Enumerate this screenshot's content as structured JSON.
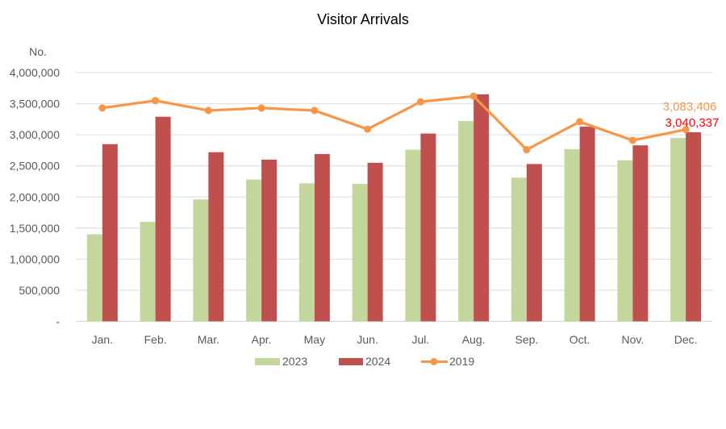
{
  "chart_data": {
    "type": "bar",
    "title": "Visitor Arrivals",
    "ylabel": "No.",
    "xlabel": "",
    "ylim": [
      0,
      4000000
    ],
    "yticks": [
      0,
      500000,
      1000000,
      1500000,
      2000000,
      2500000,
      3000000,
      3500000,
      4000000
    ],
    "ytick_labels": [
      "-",
      "500,000",
      "1,000,000",
      "1,500,000",
      "2,000,000",
      "2,500,000",
      "3,000,000",
      "3,500,000",
      "4,000,000"
    ],
    "grid": true,
    "legend_position": "bottom",
    "categories": [
      "Jan.",
      "Feb.",
      "Mar.",
      "Apr.",
      "May",
      "Jun.",
      "Jul.",
      "Aug.",
      "Sep.",
      "Oct.",
      "Nov.",
      "Dec."
    ],
    "series": [
      {
        "name": "2023",
        "kind": "bar",
        "color": "#C3D69B",
        "values": [
          1400000,
          1600000,
          1960000,
          2280000,
          2220000,
          2210000,
          2760000,
          3220000,
          2310000,
          2770000,
          2590000,
          2950000
        ]
      },
      {
        "name": "2024",
        "kind": "bar",
        "color": "#C0504D",
        "values": [
          2850000,
          3290000,
          2720000,
          2600000,
          2690000,
          2550000,
          3020000,
          3650000,
          2530000,
          3130000,
          2830000,
          3040337
        ]
      },
      {
        "name": "2019",
        "kind": "line",
        "color": "#F79646",
        "values": [
          3430000,
          3550000,
          3390000,
          3430000,
          3390000,
          3090000,
          3530000,
          3620000,
          2760000,
          3210000,
          2910000,
          3083406
        ]
      }
    ],
    "annotations": [
      {
        "text": "3,083,406",
        "series": "2019",
        "category": "Dec.",
        "color": "#F79646"
      },
      {
        "text": "3,040,337",
        "series": "2024",
        "category": "Dec.",
        "color": "#FF0000"
      }
    ]
  }
}
